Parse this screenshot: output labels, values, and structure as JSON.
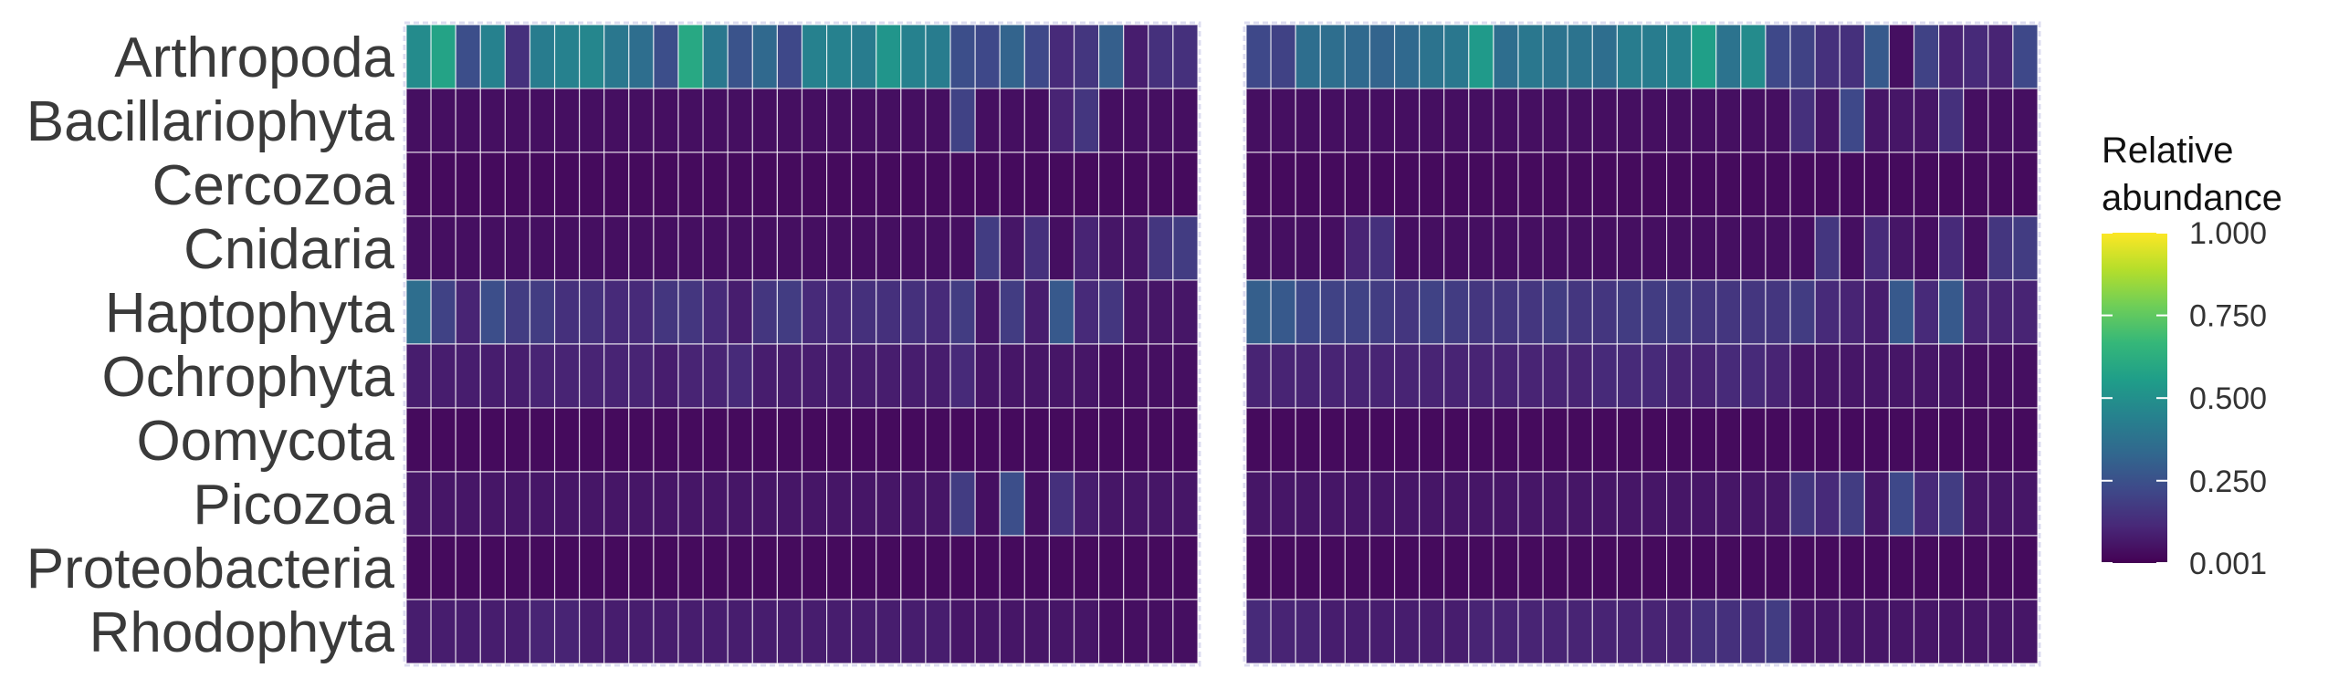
{
  "chart_data": {
    "type": "heatmap",
    "rows": [
      "Arthropoda",
      "Bacillariophyta",
      "Cercozoa",
      "Cnidaria",
      "Haptophyta",
      "Ochrophyta",
      "Oomycota",
      "Picozoa",
      "Proteobacteria",
      "Rhodophyta"
    ],
    "panels": [
      {
        "columns": 32,
        "values": [
          [
            0.48,
            0.58,
            0.24,
            0.44,
            0.14,
            0.42,
            0.44,
            0.46,
            0.4,
            0.36,
            0.24,
            0.6,
            0.4,
            0.26,
            0.34,
            0.22,
            0.44,
            0.44,
            0.42,
            0.52,
            0.44,
            0.42,
            0.24,
            0.22,
            0.32,
            0.22,
            0.12,
            0.16,
            0.3,
            0.08,
            0.14,
            0.14
          ],
          [
            0.04,
            0.04,
            0.04,
            0.04,
            0.04,
            0.04,
            0.04,
            0.04,
            0.04,
            0.04,
            0.04,
            0.04,
            0.04,
            0.04,
            0.04,
            0.04,
            0.04,
            0.04,
            0.04,
            0.04,
            0.04,
            0.04,
            0.2,
            0.04,
            0.04,
            0.04,
            0.1,
            0.16,
            0.04,
            0.04,
            0.04,
            0.04
          ],
          [
            0.03,
            0.03,
            0.03,
            0.03,
            0.03,
            0.03,
            0.03,
            0.03,
            0.03,
            0.03,
            0.03,
            0.03,
            0.03,
            0.03,
            0.03,
            0.03,
            0.03,
            0.03,
            0.03,
            0.03,
            0.03,
            0.03,
            0.03,
            0.03,
            0.03,
            0.03,
            0.03,
            0.03,
            0.03,
            0.03,
            0.03,
            0.03
          ],
          [
            0.04,
            0.04,
            0.04,
            0.04,
            0.04,
            0.04,
            0.04,
            0.04,
            0.04,
            0.04,
            0.04,
            0.04,
            0.04,
            0.04,
            0.04,
            0.04,
            0.04,
            0.04,
            0.04,
            0.04,
            0.04,
            0.04,
            0.04,
            0.18,
            0.06,
            0.14,
            0.04,
            0.1,
            0.06,
            0.06,
            0.16,
            0.18
          ],
          [
            0.36,
            0.2,
            0.1,
            0.24,
            0.18,
            0.18,
            0.14,
            0.14,
            0.12,
            0.12,
            0.16,
            0.16,
            0.12,
            0.08,
            0.16,
            0.18,
            0.12,
            0.12,
            0.14,
            0.14,
            0.14,
            0.12,
            0.18,
            0.06,
            0.18,
            0.08,
            0.28,
            0.12,
            0.16,
            0.06,
            0.06,
            0.06
          ],
          [
            0.08,
            0.08,
            0.08,
            0.08,
            0.08,
            0.1,
            0.1,
            0.1,
            0.1,
            0.1,
            0.08,
            0.1,
            0.1,
            0.12,
            0.08,
            0.08,
            0.08,
            0.08,
            0.08,
            0.08,
            0.08,
            0.08,
            0.12,
            0.06,
            0.06,
            0.06,
            0.06,
            0.06,
            0.04,
            0.04,
            0.04,
            0.04
          ],
          [
            0.03,
            0.03,
            0.03,
            0.03,
            0.03,
            0.03,
            0.03,
            0.03,
            0.03,
            0.03,
            0.03,
            0.03,
            0.03,
            0.03,
            0.03,
            0.03,
            0.03,
            0.03,
            0.03,
            0.03,
            0.03,
            0.03,
            0.03,
            0.03,
            0.03,
            0.03,
            0.03,
            0.03,
            0.03,
            0.03,
            0.03,
            0.03
          ],
          [
            0.06,
            0.06,
            0.06,
            0.06,
            0.06,
            0.06,
            0.06,
            0.06,
            0.06,
            0.06,
            0.06,
            0.06,
            0.06,
            0.06,
            0.06,
            0.06,
            0.06,
            0.06,
            0.06,
            0.06,
            0.06,
            0.06,
            0.18,
            0.04,
            0.24,
            0.04,
            0.14,
            0.08,
            0.06,
            0.06,
            0.06,
            0.06
          ],
          [
            0.03,
            0.03,
            0.03,
            0.03,
            0.03,
            0.03,
            0.03,
            0.03,
            0.03,
            0.03,
            0.03,
            0.03,
            0.03,
            0.03,
            0.03,
            0.03,
            0.03,
            0.03,
            0.03,
            0.03,
            0.03,
            0.03,
            0.03,
            0.03,
            0.03,
            0.03,
            0.03,
            0.03,
            0.03,
            0.03,
            0.03,
            0.03
          ],
          [
            0.08,
            0.08,
            0.08,
            0.08,
            0.08,
            0.1,
            0.1,
            0.08,
            0.08,
            0.08,
            0.08,
            0.08,
            0.08,
            0.08,
            0.08,
            0.08,
            0.08,
            0.08,
            0.08,
            0.08,
            0.08,
            0.08,
            0.06,
            0.06,
            0.06,
            0.06,
            0.06,
            0.06,
            0.04,
            0.04,
            0.04,
            0.04
          ]
        ]
      },
      {
        "columns": 32,
        "values": [
          [
            0.22,
            0.2,
            0.36,
            0.36,
            0.34,
            0.32,
            0.34,
            0.38,
            0.4,
            0.54,
            0.36,
            0.4,
            0.38,
            0.38,
            0.36,
            0.42,
            0.42,
            0.44,
            0.56,
            0.38,
            0.48,
            0.22,
            0.2,
            0.14,
            0.14,
            0.28,
            0.04,
            0.2,
            0.1,
            0.12,
            0.1,
            0.22
          ],
          [
            0.04,
            0.04,
            0.04,
            0.04,
            0.04,
            0.04,
            0.04,
            0.04,
            0.04,
            0.04,
            0.04,
            0.04,
            0.04,
            0.04,
            0.04,
            0.04,
            0.04,
            0.04,
            0.04,
            0.04,
            0.04,
            0.04,
            0.14,
            0.06,
            0.22,
            0.06,
            0.06,
            0.06,
            0.14,
            0.04,
            0.04,
            0.04
          ],
          [
            0.03,
            0.03,
            0.03,
            0.03,
            0.03,
            0.03,
            0.03,
            0.03,
            0.03,
            0.03,
            0.03,
            0.03,
            0.03,
            0.03,
            0.03,
            0.03,
            0.03,
            0.03,
            0.03,
            0.03,
            0.03,
            0.03,
            0.03,
            0.03,
            0.03,
            0.03,
            0.03,
            0.03,
            0.03,
            0.03,
            0.03,
            0.03
          ],
          [
            0.04,
            0.04,
            0.04,
            0.04,
            0.1,
            0.14,
            0.04,
            0.04,
            0.04,
            0.04,
            0.04,
            0.04,
            0.04,
            0.04,
            0.04,
            0.04,
            0.04,
            0.04,
            0.04,
            0.04,
            0.04,
            0.04,
            0.04,
            0.16,
            0.04,
            0.12,
            0.06,
            0.04,
            0.12,
            0.04,
            0.16,
            0.18
          ],
          [
            0.3,
            0.28,
            0.22,
            0.2,
            0.2,
            0.18,
            0.16,
            0.2,
            0.18,
            0.16,
            0.16,
            0.16,
            0.18,
            0.16,
            0.16,
            0.18,
            0.18,
            0.18,
            0.16,
            0.16,
            0.16,
            0.16,
            0.18,
            0.12,
            0.1,
            0.08,
            0.28,
            0.12,
            0.28,
            0.1,
            0.1,
            0.1
          ],
          [
            0.1,
            0.1,
            0.1,
            0.1,
            0.1,
            0.1,
            0.1,
            0.1,
            0.1,
            0.1,
            0.1,
            0.1,
            0.1,
            0.1,
            0.12,
            0.12,
            0.12,
            0.1,
            0.1,
            0.12,
            0.12,
            0.1,
            0.06,
            0.06,
            0.06,
            0.06,
            0.06,
            0.06,
            0.06,
            0.04,
            0.04,
            0.04
          ],
          [
            0.03,
            0.03,
            0.03,
            0.03,
            0.03,
            0.03,
            0.03,
            0.03,
            0.03,
            0.03,
            0.03,
            0.03,
            0.03,
            0.03,
            0.03,
            0.03,
            0.03,
            0.03,
            0.03,
            0.03,
            0.03,
            0.03,
            0.03,
            0.03,
            0.03,
            0.03,
            0.03,
            0.03,
            0.03,
            0.03,
            0.03,
            0.03
          ],
          [
            0.06,
            0.06,
            0.06,
            0.06,
            0.06,
            0.06,
            0.06,
            0.06,
            0.06,
            0.06,
            0.06,
            0.06,
            0.06,
            0.06,
            0.06,
            0.06,
            0.06,
            0.06,
            0.06,
            0.06,
            0.06,
            0.06,
            0.16,
            0.12,
            0.18,
            0.06,
            0.22,
            0.12,
            0.18,
            0.06,
            0.06,
            0.06
          ],
          [
            0.03,
            0.03,
            0.03,
            0.03,
            0.03,
            0.03,
            0.03,
            0.03,
            0.03,
            0.03,
            0.03,
            0.03,
            0.03,
            0.03,
            0.03,
            0.03,
            0.03,
            0.03,
            0.03,
            0.03,
            0.03,
            0.03,
            0.03,
            0.03,
            0.03,
            0.03,
            0.03,
            0.03,
            0.03,
            0.03,
            0.03,
            0.03
          ],
          [
            0.12,
            0.1,
            0.1,
            0.08,
            0.08,
            0.08,
            0.08,
            0.08,
            0.08,
            0.1,
            0.1,
            0.1,
            0.1,
            0.1,
            0.1,
            0.1,
            0.1,
            0.1,
            0.14,
            0.14,
            0.14,
            0.18,
            0.06,
            0.06,
            0.06,
            0.06,
            0.06,
            0.06,
            0.06,
            0.06,
            0.06,
            0.06
          ]
        ]
      }
    ],
    "legend": {
      "title_lines": [
        "Relative",
        "abundance"
      ],
      "ticks": [
        "0.001",
        "0.250",
        "0.500",
        "0.750",
        "1.000"
      ],
      "tick_values": [
        0.001,
        0.25,
        0.5,
        0.75,
        1.0
      ],
      "range": [
        0.001,
        1.0
      ],
      "placement": "right",
      "colormap": "viridis"
    },
    "colors": {
      "cell_border": "#ffffff",
      "panel_border": "#dcdcf0",
      "label_text": "#3a3a3a",
      "viridis": [
        "#440154",
        "#482878",
        "#3e4989",
        "#31688e",
        "#26828e",
        "#1f9e89",
        "#35b779",
        "#6ece58",
        "#b5de2b",
        "#fde725"
      ]
    },
    "grid": false
  }
}
